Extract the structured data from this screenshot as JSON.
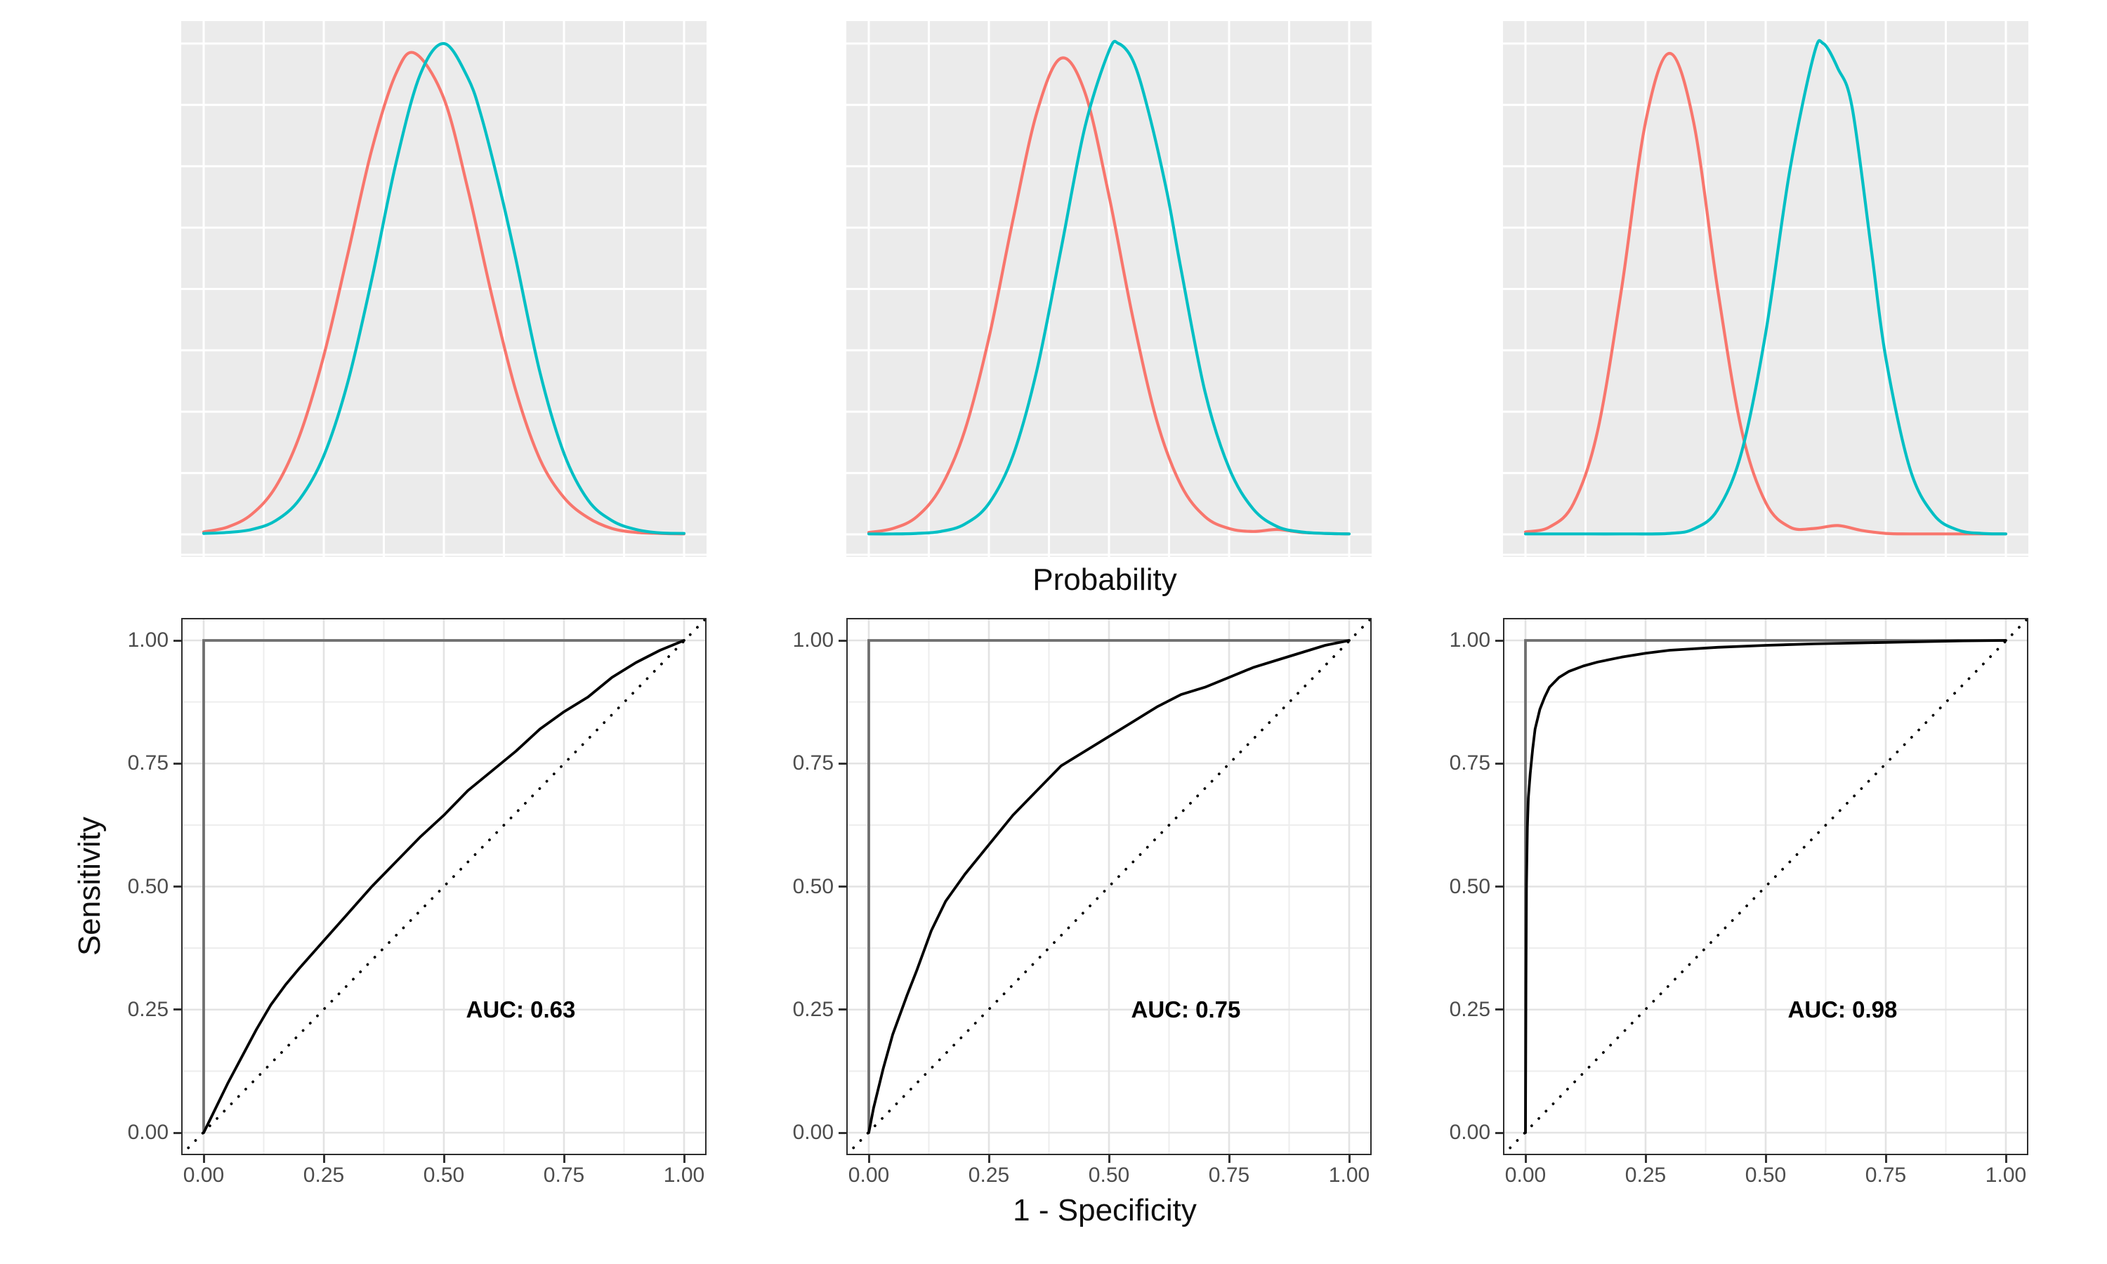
{
  "labels": {
    "x_top": "Probability",
    "x_bottom": "1 - Specificity",
    "y_bottom": "Sensitivity"
  },
  "colors": {
    "class_negative": "#F8766D",
    "class_positive": "#00BFC4",
    "density_panel_bg": "#EBEBEB",
    "density_grid": "#FFFFFF",
    "roc_panel_bg": "#FFFFFF",
    "roc_grid_major": "#E3E3E3",
    "roc_grid_minor": "#EDEDED",
    "roc_curve": "#000000",
    "diagonal": "#000000",
    "reference_corner": "#6F6F6F",
    "panel_border": "#2D2D2D",
    "tick_text": "#4D4D4D",
    "axis_title_text": "#0F0F0F"
  },
  "axis": {
    "tick_labels": [
      "0.00",
      "0.25",
      "0.50",
      "0.75",
      "1.00"
    ],
    "tick_values": [
      0,
      0.25,
      0.5,
      0.75,
      1
    ]
  },
  "chart_data": [
    {
      "type": "line",
      "panel": "density-overlap-high",
      "xlabel": "Probability",
      "x_range": [
        0,
        1
      ],
      "grid": "white-on-gray",
      "series": [
        {
          "name": "class-negative-density",
          "color": "#F8766D",
          "x": [
            0,
            0.05,
            0.1,
            0.15,
            0.2,
            0.25,
            0.3,
            0.35,
            0.4,
            0.44,
            0.5,
            0.55,
            0.6,
            0.65,
            0.7,
            0.75,
            0.8,
            0.85,
            0.9,
            0.95,
            1.0
          ],
          "y": [
            0.005,
            0.015,
            0.041,
            0.097,
            0.202,
            0.364,
            0.571,
            0.784,
            0.938,
            0.98,
            0.888,
            0.703,
            0.486,
            0.292,
            0.153,
            0.075,
            0.034,
            0.012,
            0.004,
            0.002,
            0.001
          ]
        },
        {
          "name": "class-positive-density",
          "color": "#00BFC4",
          "x": [
            0,
            0.05,
            0.1,
            0.15,
            0.2,
            0.25,
            0.3,
            0.35,
            0.4,
            0.45,
            0.5,
            0.55,
            0.58,
            0.62,
            0.65,
            0.7,
            0.75,
            0.8,
            0.85,
            0.9,
            0.95,
            1.0
          ],
          "y": [
            0.002,
            0.004,
            0.01,
            0.028,
            0.072,
            0.16,
            0.31,
            0.52,
            0.755,
            0.935,
            1.0,
            0.93,
            0.845,
            0.69,
            0.56,
            0.33,
            0.165,
            0.07,
            0.028,
            0.01,
            0.003,
            0.002
          ]
        }
      ]
    },
    {
      "type": "line",
      "panel": "density-overlap-medium",
      "xlabel": "Probability",
      "x_range": [
        0,
        1
      ],
      "grid": "white-on-gray",
      "series": [
        {
          "name": "class-negative-density",
          "color": "#F8766D",
          "x": [
            0,
            0.05,
            0.1,
            0.15,
            0.2,
            0.25,
            0.3,
            0.35,
            0.4,
            0.45,
            0.5,
            0.55,
            0.6,
            0.65,
            0.7,
            0.75,
            0.8,
            0.85,
            0.9,
            0.95,
            1.0
          ],
          "y": [
            0.004,
            0.012,
            0.036,
            0.096,
            0.212,
            0.4,
            0.64,
            0.86,
            0.97,
            0.9,
            0.69,
            0.44,
            0.23,
            0.1,
            0.036,
            0.012,
            0.006,
            0.01,
            0.004,
            0.002,
            0.001
          ]
        },
        {
          "name": "class-positive-density",
          "color": "#00BFC4",
          "x": [
            0,
            0.05,
            0.1,
            0.15,
            0.2,
            0.25,
            0.3,
            0.35,
            0.4,
            0.45,
            0.5,
            0.52,
            0.55,
            0.58,
            0.62,
            0.65,
            0.7,
            0.75,
            0.8,
            0.85,
            0.9,
            0.95,
            1.0
          ],
          "y": [
            0.001,
            0.001,
            0.002,
            0.006,
            0.021,
            0.063,
            0.16,
            0.335,
            0.58,
            0.83,
            0.985,
            1.0,
            0.965,
            0.87,
            0.7,
            0.54,
            0.29,
            0.135,
            0.052,
            0.016,
            0.005,
            0.002,
            0.001
          ]
        }
      ]
    },
    {
      "type": "line",
      "panel": "density-overlap-low",
      "xlabel": "Probability",
      "x_range": [
        0,
        1
      ],
      "grid": "white-on-gray",
      "series": [
        {
          "name": "class-negative-density",
          "color": "#F8766D",
          "x": [
            0,
            0.05,
            0.1,
            0.15,
            0.2,
            0.25,
            0.3,
            0.35,
            0.4,
            0.45,
            0.5,
            0.55,
            0.6,
            0.65,
            0.7,
            0.75,
            0.8,
            0.9,
            1.0
          ],
          "y": [
            0.005,
            0.015,
            0.063,
            0.21,
            0.5,
            0.84,
            0.98,
            0.84,
            0.5,
            0.212,
            0.065,
            0.015,
            0.012,
            0.018,
            0.008,
            0.002,
            0.001,
            0.001,
            0.001
          ]
        },
        {
          "name": "class-positive-density",
          "color": "#00BFC4",
          "x": [
            0,
            0.1,
            0.2,
            0.3,
            0.35,
            0.4,
            0.45,
            0.5,
            0.55,
            0.6,
            0.62,
            0.65,
            0.68,
            0.72,
            0.75,
            0.8,
            0.85,
            0.9,
            0.95,
            1.0
          ],
          "y": [
            0.001,
            0.001,
            0.001,
            0.002,
            0.011,
            0.05,
            0.168,
            0.41,
            0.74,
            0.976,
            1.0,
            0.95,
            0.87,
            0.58,
            0.36,
            0.135,
            0.04,
            0.009,
            0.002,
            0.001
          ]
        }
      ]
    },
    {
      "type": "line",
      "panel": "roc-auc-063",
      "xlabel": "1 - Specificity",
      "ylabel": "Sensitivity",
      "x_range": [
        0,
        1
      ],
      "y_range": [
        0,
        1
      ],
      "auc": 0.63,
      "annotation": {
        "text": "AUC: 0.63",
        "x": 0.66,
        "y": 0.25
      },
      "diagonal_reference": "dotted",
      "corner_reference": "gray lines at x=0 and y=1",
      "series": [
        {
          "name": "roc-curve",
          "color": "#000000",
          "x": [
            0,
            0.02,
            0.05,
            0.08,
            0.11,
            0.14,
            0.17,
            0.2,
            0.25,
            0.3,
            0.35,
            0.4,
            0.45,
            0.5,
            0.55,
            0.6,
            0.65,
            0.7,
            0.75,
            0.8,
            0.85,
            0.9,
            0.95,
            1
          ],
          "y": [
            0,
            0.04,
            0.1,
            0.155,
            0.21,
            0.26,
            0.3,
            0.335,
            0.39,
            0.445,
            0.5,
            0.55,
            0.6,
            0.645,
            0.695,
            0.735,
            0.775,
            0.82,
            0.855,
            0.885,
            0.925,
            0.955,
            0.98,
            1
          ]
        }
      ]
    },
    {
      "type": "line",
      "panel": "roc-auc-075",
      "xlabel": "1 - Specificity",
      "ylabel": "Sensitivity",
      "x_range": [
        0,
        1
      ],
      "y_range": [
        0,
        1
      ],
      "auc": 0.75,
      "annotation": {
        "text": "AUC: 0.75",
        "x": 0.66,
        "y": 0.25
      },
      "diagonal_reference": "dotted",
      "corner_reference": "gray lines at x=0 and y=1",
      "series": [
        {
          "name": "roc-curve",
          "color": "#000000",
          "x": [
            0,
            0.01,
            0.03,
            0.05,
            0.08,
            0.1,
            0.13,
            0.16,
            0.2,
            0.25,
            0.3,
            0.35,
            0.4,
            0.45,
            0.5,
            0.55,
            0.6,
            0.65,
            0.7,
            0.75,
            0.8,
            0.85,
            0.9,
            0.95,
            1
          ],
          "y": [
            0,
            0.05,
            0.13,
            0.2,
            0.28,
            0.33,
            0.41,
            0.47,
            0.525,
            0.585,
            0.645,
            0.695,
            0.745,
            0.775,
            0.805,
            0.835,
            0.865,
            0.89,
            0.905,
            0.925,
            0.945,
            0.96,
            0.975,
            0.99,
            1
          ]
        }
      ]
    },
    {
      "type": "line",
      "panel": "roc-auc-098",
      "xlabel": "1 - Specificity",
      "ylabel": "Sensitivity",
      "x_range": [
        0,
        1
      ],
      "y_range": [
        0,
        1
      ],
      "auc": 0.98,
      "annotation": {
        "text": "AUC: 0.98",
        "x": 0.66,
        "y": 0.25
      },
      "diagonal_reference": "dotted",
      "corner_reference": "gray lines at x=0 and y=1",
      "series": [
        {
          "name": "roc-curve",
          "color": "#000000",
          "x": [
            0,
            0.001,
            0.002,
            0.004,
            0.006,
            0.01,
            0.015,
            0.02,
            0.03,
            0.04,
            0.05,
            0.07,
            0.09,
            0.12,
            0.15,
            0.2,
            0.25,
            0.3,
            0.4,
            0.5,
            0.6,
            0.7,
            0.8,
            0.9,
            1
          ],
          "y": [
            0,
            0.3,
            0.5,
            0.62,
            0.68,
            0.73,
            0.78,
            0.82,
            0.86,
            0.885,
            0.905,
            0.925,
            0.937,
            0.948,
            0.956,
            0.966,
            0.974,
            0.98,
            0.986,
            0.99,
            0.993,
            0.995,
            0.997,
            0.999,
            1
          ]
        }
      ]
    }
  ]
}
